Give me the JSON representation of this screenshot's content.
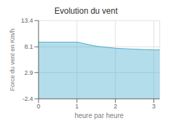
{
  "chart_data": {
    "type": "area",
    "title": "Evolution du vent",
    "xlabel": "heure par heure",
    "ylabel": "Force du vent en Km/h",
    "x": [
      0,
      0.1,
      0.2,
      0.3,
      0.4,
      0.5,
      0.6,
      0.7,
      0.8,
      0.9,
      1.0,
      1.1,
      1.2,
      1.3,
      1.4,
      1.5,
      1.6,
      1.7,
      1.8,
      1.9,
      2.0,
      2.1,
      2.2,
      2.3,
      2.4,
      2.5,
      2.6,
      2.7,
      2.8,
      2.9,
      3.0,
      3.15
    ],
    "values": [
      9.05,
      9.05,
      9.05,
      9.05,
      9.05,
      9.05,
      9.05,
      9.05,
      9.05,
      9.05,
      9.05,
      8.9,
      8.72,
      8.55,
      8.38,
      8.25,
      8.14,
      8.06,
      7.98,
      7.9,
      7.82,
      7.77,
      7.73,
      7.7,
      7.66,
      7.63,
      7.6,
      7.57,
      7.54,
      7.51,
      7.49,
      7.47
    ],
    "color": "#44aacc",
    "xlim": [
      0,
      3.15
    ],
    "ylim": [
      -2.4,
      13.4
    ],
    "xticks": [
      0,
      1,
      2,
      3
    ],
    "yticks": [
      -2.4,
      2.9,
      8.1,
      13.4
    ],
    "grid": true
  }
}
